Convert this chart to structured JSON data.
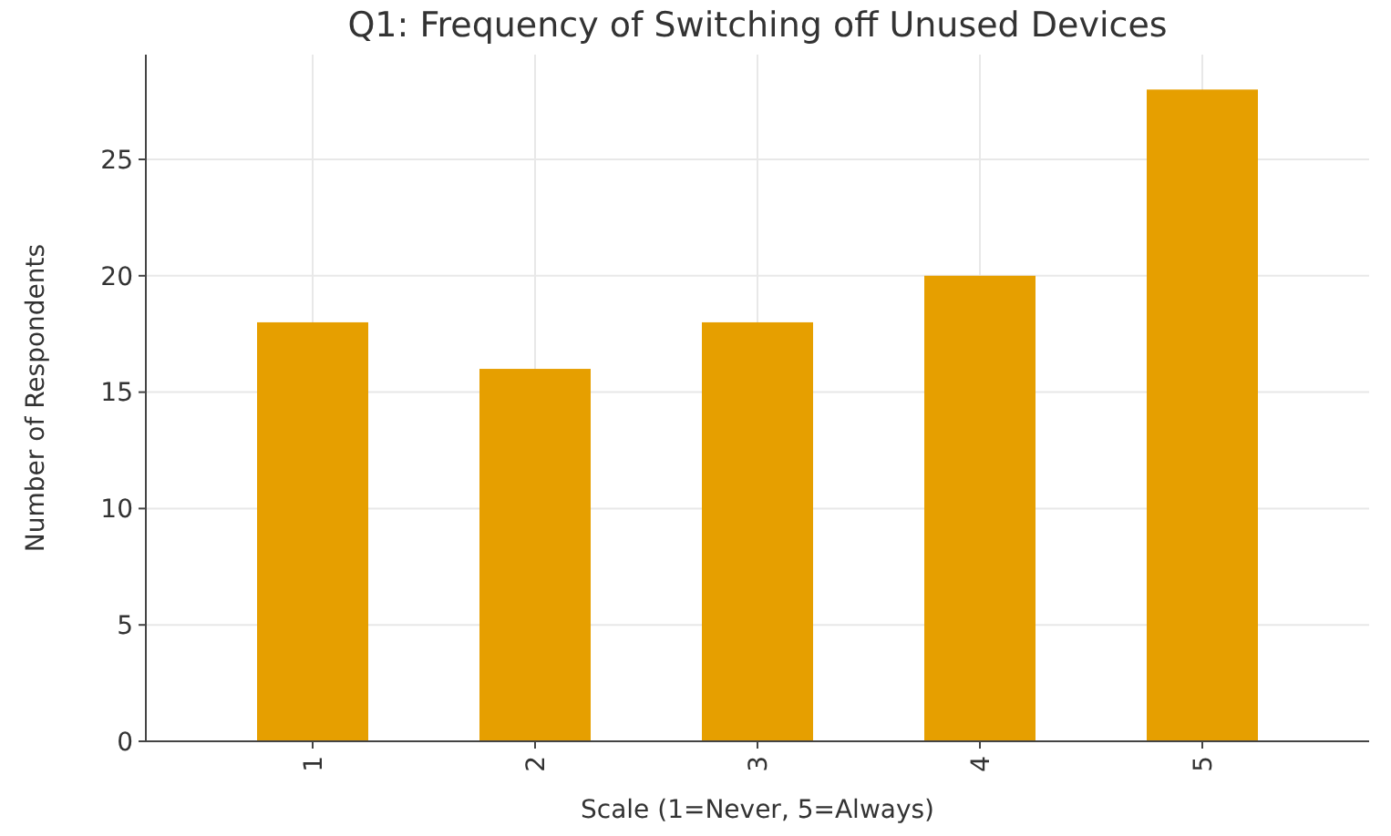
{
  "chart_data": {
    "type": "bar",
    "title": "Q1: Frequency of Switching off Unused Devices",
    "xlabel": "Scale (1=Never, 5=Always)",
    "ylabel": "Number of Respondents",
    "categories": [
      "1",
      "2",
      "3",
      "4",
      "5"
    ],
    "values": [
      18,
      16,
      18,
      20,
      28
    ],
    "color": "#e69f00",
    "ylim": [
      0,
      29.5
    ],
    "yticks": [
      0,
      5,
      10,
      15,
      20,
      25
    ],
    "grid": true
  }
}
